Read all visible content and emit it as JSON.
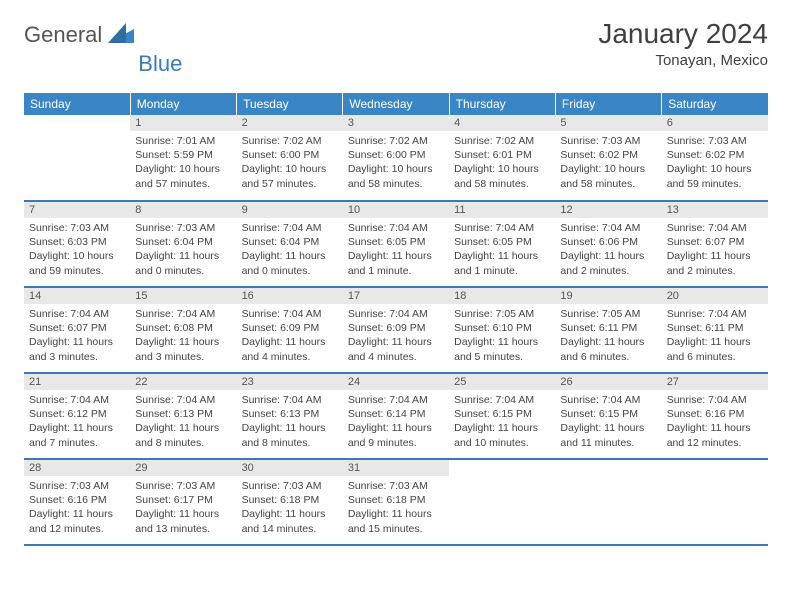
{
  "brand": {
    "text_general": "General",
    "text_blue": "Blue",
    "mark_color": "#3a85c6"
  },
  "title": "January 2024",
  "location": "Tonayan, Mexico",
  "colors": {
    "header_bg": "#3a85c6",
    "header_text": "#ffffff",
    "daynum_bg": "#e8e8e8",
    "rule": "#3a7ab8",
    "body_text": "#444444",
    "page_bg": "#ffffff"
  },
  "daysOfWeek": [
    "Sunday",
    "Monday",
    "Tuesday",
    "Wednesday",
    "Thursday",
    "Friday",
    "Saturday"
  ],
  "weeks": [
    [
      null,
      {
        "n": "1",
        "sunrise": "Sunrise: 7:01 AM",
        "sunset": "Sunset: 5:59 PM",
        "daylight": "Daylight: 10 hours and 57 minutes."
      },
      {
        "n": "2",
        "sunrise": "Sunrise: 7:02 AM",
        "sunset": "Sunset: 6:00 PM",
        "daylight": "Daylight: 10 hours and 57 minutes."
      },
      {
        "n": "3",
        "sunrise": "Sunrise: 7:02 AM",
        "sunset": "Sunset: 6:00 PM",
        "daylight": "Daylight: 10 hours and 58 minutes."
      },
      {
        "n": "4",
        "sunrise": "Sunrise: 7:02 AM",
        "sunset": "Sunset: 6:01 PM",
        "daylight": "Daylight: 10 hours and 58 minutes."
      },
      {
        "n": "5",
        "sunrise": "Sunrise: 7:03 AM",
        "sunset": "Sunset: 6:02 PM",
        "daylight": "Daylight: 10 hours and 58 minutes."
      },
      {
        "n": "6",
        "sunrise": "Sunrise: 7:03 AM",
        "sunset": "Sunset: 6:02 PM",
        "daylight": "Daylight: 10 hours and 59 minutes."
      }
    ],
    [
      {
        "n": "7",
        "sunrise": "Sunrise: 7:03 AM",
        "sunset": "Sunset: 6:03 PM",
        "daylight": "Daylight: 10 hours and 59 minutes."
      },
      {
        "n": "8",
        "sunrise": "Sunrise: 7:03 AM",
        "sunset": "Sunset: 6:04 PM",
        "daylight": "Daylight: 11 hours and 0 minutes."
      },
      {
        "n": "9",
        "sunrise": "Sunrise: 7:04 AM",
        "sunset": "Sunset: 6:04 PM",
        "daylight": "Daylight: 11 hours and 0 minutes."
      },
      {
        "n": "10",
        "sunrise": "Sunrise: 7:04 AM",
        "sunset": "Sunset: 6:05 PM",
        "daylight": "Daylight: 11 hours and 1 minute."
      },
      {
        "n": "11",
        "sunrise": "Sunrise: 7:04 AM",
        "sunset": "Sunset: 6:05 PM",
        "daylight": "Daylight: 11 hours and 1 minute."
      },
      {
        "n": "12",
        "sunrise": "Sunrise: 7:04 AM",
        "sunset": "Sunset: 6:06 PM",
        "daylight": "Daylight: 11 hours and 2 minutes."
      },
      {
        "n": "13",
        "sunrise": "Sunrise: 7:04 AM",
        "sunset": "Sunset: 6:07 PM",
        "daylight": "Daylight: 11 hours and 2 minutes."
      }
    ],
    [
      {
        "n": "14",
        "sunrise": "Sunrise: 7:04 AM",
        "sunset": "Sunset: 6:07 PM",
        "daylight": "Daylight: 11 hours and 3 minutes."
      },
      {
        "n": "15",
        "sunrise": "Sunrise: 7:04 AM",
        "sunset": "Sunset: 6:08 PM",
        "daylight": "Daylight: 11 hours and 3 minutes."
      },
      {
        "n": "16",
        "sunrise": "Sunrise: 7:04 AM",
        "sunset": "Sunset: 6:09 PM",
        "daylight": "Daylight: 11 hours and 4 minutes."
      },
      {
        "n": "17",
        "sunrise": "Sunrise: 7:04 AM",
        "sunset": "Sunset: 6:09 PM",
        "daylight": "Daylight: 11 hours and 4 minutes."
      },
      {
        "n": "18",
        "sunrise": "Sunrise: 7:05 AM",
        "sunset": "Sunset: 6:10 PM",
        "daylight": "Daylight: 11 hours and 5 minutes."
      },
      {
        "n": "19",
        "sunrise": "Sunrise: 7:05 AM",
        "sunset": "Sunset: 6:11 PM",
        "daylight": "Daylight: 11 hours and 6 minutes."
      },
      {
        "n": "20",
        "sunrise": "Sunrise: 7:04 AM",
        "sunset": "Sunset: 6:11 PM",
        "daylight": "Daylight: 11 hours and 6 minutes."
      }
    ],
    [
      {
        "n": "21",
        "sunrise": "Sunrise: 7:04 AM",
        "sunset": "Sunset: 6:12 PM",
        "daylight": "Daylight: 11 hours and 7 minutes."
      },
      {
        "n": "22",
        "sunrise": "Sunrise: 7:04 AM",
        "sunset": "Sunset: 6:13 PM",
        "daylight": "Daylight: 11 hours and 8 minutes."
      },
      {
        "n": "23",
        "sunrise": "Sunrise: 7:04 AM",
        "sunset": "Sunset: 6:13 PM",
        "daylight": "Daylight: 11 hours and 8 minutes."
      },
      {
        "n": "24",
        "sunrise": "Sunrise: 7:04 AM",
        "sunset": "Sunset: 6:14 PM",
        "daylight": "Daylight: 11 hours and 9 minutes."
      },
      {
        "n": "25",
        "sunrise": "Sunrise: 7:04 AM",
        "sunset": "Sunset: 6:15 PM",
        "daylight": "Daylight: 11 hours and 10 minutes."
      },
      {
        "n": "26",
        "sunrise": "Sunrise: 7:04 AM",
        "sunset": "Sunset: 6:15 PM",
        "daylight": "Daylight: 11 hours and 11 minutes."
      },
      {
        "n": "27",
        "sunrise": "Sunrise: 7:04 AM",
        "sunset": "Sunset: 6:16 PM",
        "daylight": "Daylight: 11 hours and 12 minutes."
      }
    ],
    [
      {
        "n": "28",
        "sunrise": "Sunrise: 7:03 AM",
        "sunset": "Sunset: 6:16 PM",
        "daylight": "Daylight: 11 hours and 12 minutes."
      },
      {
        "n": "29",
        "sunrise": "Sunrise: 7:03 AM",
        "sunset": "Sunset: 6:17 PM",
        "daylight": "Daylight: 11 hours and 13 minutes."
      },
      {
        "n": "30",
        "sunrise": "Sunrise: 7:03 AM",
        "sunset": "Sunset: 6:18 PM",
        "daylight": "Daylight: 11 hours and 14 minutes."
      },
      {
        "n": "31",
        "sunrise": "Sunrise: 7:03 AM",
        "sunset": "Sunset: 6:18 PM",
        "daylight": "Daylight: 11 hours and 15 minutes."
      },
      null,
      null,
      null
    ]
  ]
}
